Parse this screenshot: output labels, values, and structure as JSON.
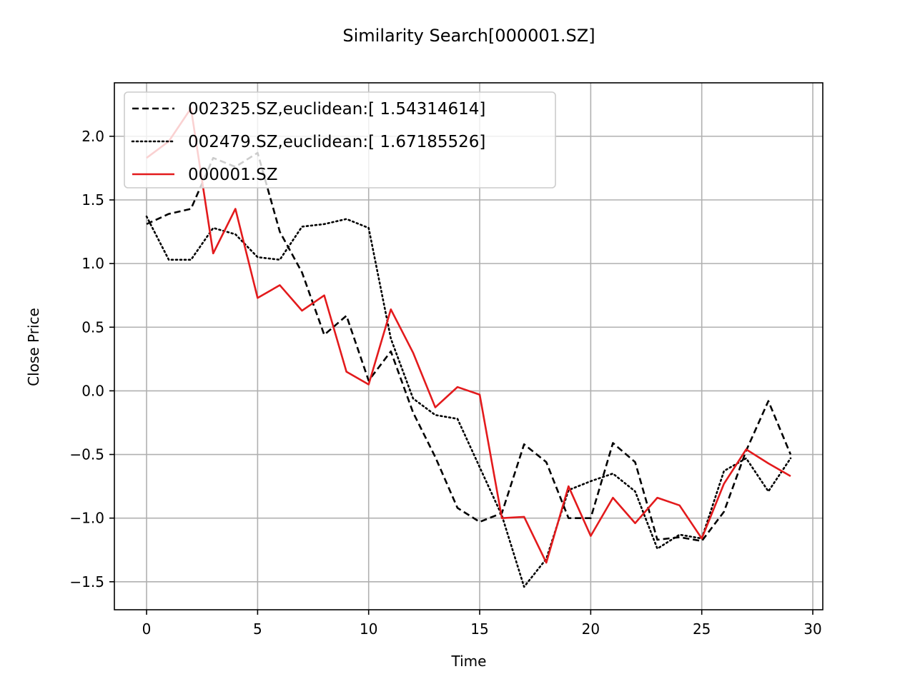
{
  "chart_data": {
    "type": "line",
    "title": "Similarity Search[000001.SZ]",
    "xlabel": "Time",
    "ylabel": "Close Price",
    "xlim": [
      -1.45,
      30.45
    ],
    "ylim": [
      -1.72,
      2.42
    ],
    "xticks": [
      {
        "value": 0,
        "label": "0"
      },
      {
        "value": 5,
        "label": "5"
      },
      {
        "value": 10,
        "label": "10"
      },
      {
        "value": 15,
        "label": "15"
      },
      {
        "value": 20,
        "label": "20"
      },
      {
        "value": 25,
        "label": "25"
      },
      {
        "value": 30,
        "label": "30"
      }
    ],
    "yticks": [
      {
        "value": -1.5,
        "label": "−1.5"
      },
      {
        "value": -1.0,
        "label": "−1.0"
      },
      {
        "value": -0.5,
        "label": "−0.5"
      },
      {
        "value": 0.0,
        "label": "0.0"
      },
      {
        "value": 0.5,
        "label": "0.5"
      },
      {
        "value": 1.0,
        "label": "1.0"
      },
      {
        "value": 1.5,
        "label": "1.5"
      },
      {
        "value": 2.0,
        "label": "2.0"
      }
    ],
    "grid": true,
    "legend_position": "upper-left",
    "x": [
      0,
      1,
      2,
      3,
      4,
      5,
      6,
      7,
      8,
      9,
      10,
      11,
      12,
      13,
      14,
      15,
      16,
      17,
      18,
      19,
      20,
      21,
      22,
      23,
      24,
      25,
      26,
      27,
      28,
      29
    ],
    "series": [
      {
        "name": "002325.SZ,euclidean:[ 1.54314614]",
        "color": "#000000",
        "style": "dashed",
        "values": [
          1.31,
          1.39,
          1.43,
          1.83,
          1.76,
          1.87,
          1.25,
          0.93,
          0.44,
          0.59,
          0.08,
          0.31,
          -0.17,
          -0.52,
          -0.92,
          -1.03,
          -0.96,
          -0.42,
          -0.56,
          -1.0,
          -1.0,
          -0.41,
          -0.56,
          -1.17,
          -1.15,
          -1.18,
          -0.95,
          -0.47,
          -0.08,
          -0.5
        ]
      },
      {
        "name": "002479.SZ,euclidean:[ 1.67185526]",
        "color": "#000000",
        "style": "dotted",
        "values": [
          1.37,
          1.03,
          1.03,
          1.28,
          1.23,
          1.05,
          1.03,
          1.29,
          1.31,
          1.35,
          1.28,
          0.41,
          -0.06,
          -0.19,
          -0.22,
          -0.6,
          -0.98,
          -1.54,
          -1.32,
          -0.78,
          -0.71,
          -0.65,
          -0.79,
          -1.24,
          -1.13,
          -1.16,
          -0.63,
          -0.53,
          -0.79,
          -0.53
        ]
      },
      {
        "name": "000001.SZ",
        "color": "#e31a1c",
        "style": "solid",
        "values": [
          1.83,
          1.96,
          2.22,
          1.08,
          1.43,
          0.73,
          0.83,
          0.63,
          0.75,
          0.15,
          0.05,
          0.64,
          0.3,
          -0.13,
          0.03,
          -0.03,
          -1.0,
          -0.99,
          -1.35,
          -0.75,
          -1.14,
          -0.84,
          -1.04,
          -0.84,
          -0.9,
          -1.16,
          -0.73,
          -0.46,
          -0.57,
          -0.67
        ]
      }
    ]
  }
}
